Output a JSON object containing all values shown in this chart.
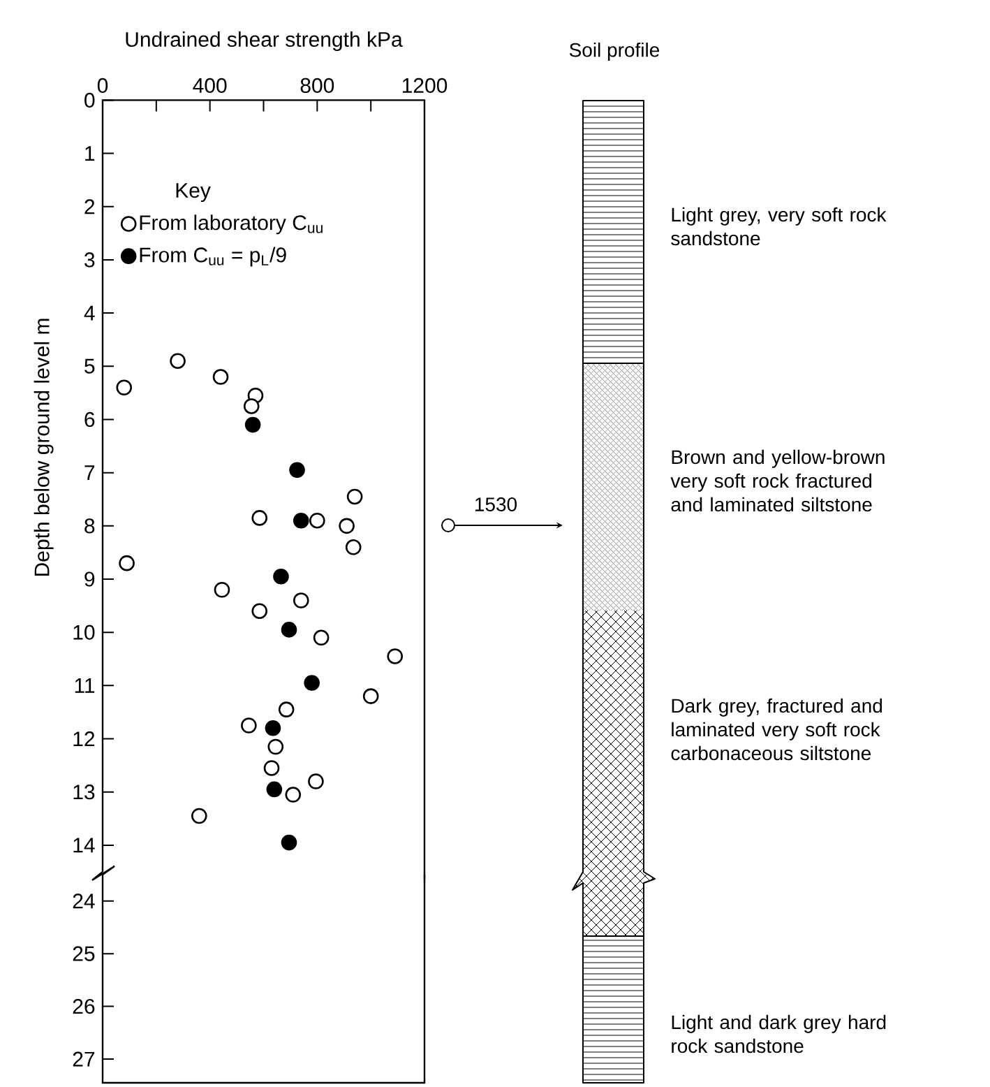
{
  "chart_data": [
    {
      "type": "scatter",
      "xlabel": "Undrained shear strength kPa",
      "ylabel": "Depth below ground level m",
      "legend_title": "Key",
      "legend": "top left",
      "marker": "circle",
      "xlim": [
        0,
        1200
      ],
      "ylim": [
        14.5,
        0
      ],
      "xticks": [
        0,
        {
          "value": 200,
          "label": null
        },
        400,
        {
          "value": 600,
          "label": null
        },
        800,
        {
          "value": 1000,
          "label": null
        },
        1200
      ],
      "yticks": [
        0,
        1,
        2,
        3,
        4,
        5,
        6,
        7,
        8,
        9,
        10,
        11,
        12,
        13,
        14
      ],
      "series": [
        {
          "name": "From laboratory C$_{uu}$",
          "color": "#ffffff",
          "x": [
            80,
            280,
            440,
            570,
            555,
            940,
            585,
            800,
            910,
            935,
            90,
            445,
            740,
            585,
            815,
            1090,
            1000,
            685,
            545,
            645,
            630,
            795,
            710,
            360
          ],
          "values": [
            5.4,
            4.9,
            5.2,
            5.55,
            5.75,
            7.45,
            7.85,
            7.9,
            8.0,
            8.4,
            8.7,
            9.2,
            9.4,
            9.6,
            10.1,
            10.45,
            11.2,
            11.45,
            11.75,
            12.15,
            12.55,
            12.8,
            13.05,
            13.45
          ]
        },
        {
          "name": "From C$_{uu}$ = p$_{L}$/9",
          "color": "#000000",
          "x": [
            560,
            725,
            740,
            665,
            695,
            780,
            635,
            640,
            695
          ],
          "values": [
            6.1,
            6.95,
            7.9,
            8.95,
            9.95,
            10.95,
            11.8,
            12.95,
            13.95
          ]
        }
      ],
      "annotations": [
        "Soil profile",
        "Light grey, very soft rock sandstone",
        "Brown and yellow-brown very soft rock fractured and laminated siltstone",
        "Dark grey, fractured and laminated very soft rock carbonaceous siltstone",
        "Light and dark grey hard rock sandstone",
        "1530"
      ]
    },
    {
      "type": "scatter",
      "xlim": [
        0,
        1200
      ],
      "ylim": [
        27.45,
        23.5
      ],
      "yticks": [
        24,
        25,
        26,
        27
      ],
      "tick_labels": "y"
    }
  ]
}
